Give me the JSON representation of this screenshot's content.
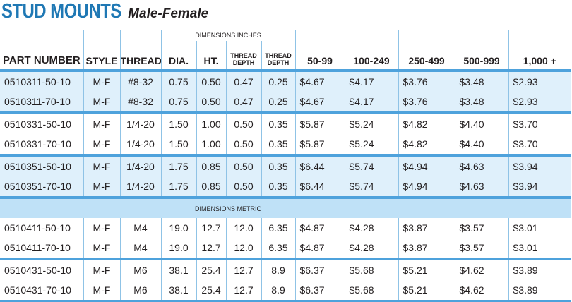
{
  "title": {
    "main": "STUD MOUNTS",
    "sub": "Male-Female"
  },
  "dim_inches_label": "DIMENSIONS INCHES",
  "dim_metric_label": "DIMENSIONS METRIC",
  "columns": [
    "PART NUMBER",
    "STYLE",
    "THREAD",
    "DIA.",
    "HT.",
    "THREAD DEPTH",
    "THREAD DEPTH",
    "50-99",
    "100-249",
    "250-499",
    "500-999",
    "1,000 +"
  ],
  "rows_inches": [
    [
      "0510311-50-10",
      "M-F",
      "#8-32",
      "0.75",
      "0.50",
      "0.47",
      "0.25",
      "$4.67",
      "$4.17",
      "$3.76",
      "$3.48",
      "$2.93"
    ],
    [
      "0510311-70-10",
      "M-F",
      "#8-32",
      "0.75",
      "0.50",
      "0.47",
      "0.25",
      "$4.67",
      "$4.17",
      "$3.76",
      "$3.48",
      "$2.93"
    ],
    [
      "0510331-50-10",
      "M-F",
      "1/4-20",
      "1.50",
      "1.00",
      "0.50",
      "0.35",
      "$5.87",
      "$5.24",
      "$4.82",
      "$4.40",
      "$3.70"
    ],
    [
      "0510331-70-10",
      "M-F",
      "1/4-20",
      "1.50",
      "1.00",
      "0.50",
      "0.35",
      "$5.87",
      "$5.24",
      "$4.82",
      "$4.40",
      "$3.70"
    ],
    [
      "0510351-50-10",
      "M-F",
      "1/4-20",
      "1.75",
      "0.85",
      "0.50",
      "0.35",
      "$6.44",
      "$5.74",
      "$4.94",
      "$4.63",
      "$3.94"
    ],
    [
      "0510351-70-10",
      "M-F",
      "1/4-20",
      "1.75",
      "0.85",
      "0.50",
      "0.35",
      "$6.44",
      "$5.74",
      "$4.94",
      "$4.63",
      "$3.94"
    ]
  ],
  "rows_metric": [
    [
      "0510411-50-10",
      "M-F",
      "M4",
      "19.0",
      "12.7",
      "12.0",
      "6.35",
      "$4.87",
      "$4.28",
      "$3.87",
      "$3.57",
      "$3.01"
    ],
    [
      "0510411-70-10",
      "M-F",
      "M4",
      "19.0",
      "12.7",
      "12.0",
      "6.35",
      "$4.87",
      "$4.28",
      "$3.87",
      "$3.57",
      "$3.01"
    ],
    [
      "0510431-50-10",
      "M-F",
      "M6",
      "38.1",
      "25.4",
      "12.7",
      "8.9",
      "$6.37",
      "$5.68",
      "$5.21",
      "$4.62",
      "$3.89"
    ],
    [
      "0510431-70-10",
      "M-F",
      "M6",
      "38.1",
      "25.4",
      "12.7",
      "8.9",
      "$6.37",
      "$5.68",
      "$5.21",
      "$4.62",
      "$3.89"
    ]
  ],
  "colors": {
    "accent": "#1f78b4",
    "rule": "#4ea2dc",
    "shade": "#dff0fb",
    "metric_band": "#bfe1f7"
  }
}
